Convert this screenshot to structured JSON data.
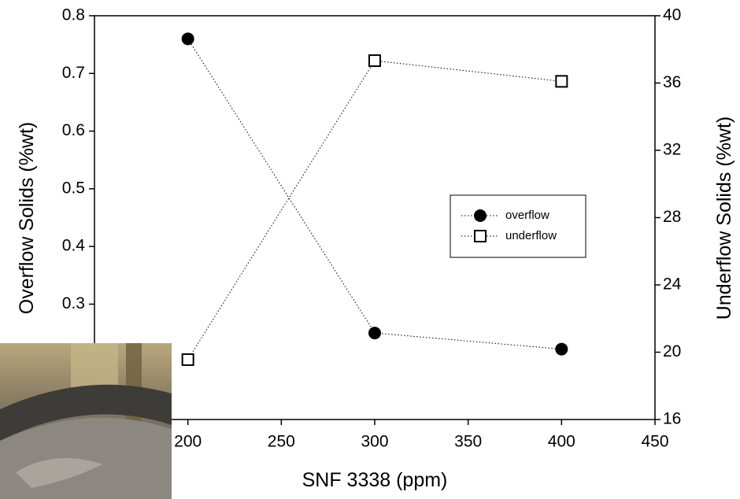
{
  "chart_data": {
    "type": "line",
    "x_label": "SNF 3338 (ppm)",
    "y_label": "Overflow Solids (%wt)",
    "y2_label": "Underflow Solids (%wt)",
    "x": [
      200,
      300,
      400
    ],
    "series": [
      {
        "name": "overflow",
        "color": "#000000",
        "marker": "circle",
        "values": [
          0.76,
          0.25,
          0.222
        ]
      },
      {
        "name": "underflow",
        "color": "#000000",
        "marker": "square",
        "axis": "y2",
        "values": [
          19.56,
          37.33,
          36.1
        ]
      }
    ],
    "xlim": [
      150,
      450
    ],
    "xticks": [
      200,
      250,
      300,
      350,
      400,
      450
    ],
    "ylim": [
      0.1,
      0.8
    ],
    "yticks": [
      0.3,
      0.4,
      0.5,
      0.6,
      0.7,
      0.8
    ],
    "y2lim": [
      16,
      40
    ],
    "y2ticks": [
      16,
      20,
      24,
      28,
      32,
      36,
      40
    ],
    "legend": "right"
  }
}
